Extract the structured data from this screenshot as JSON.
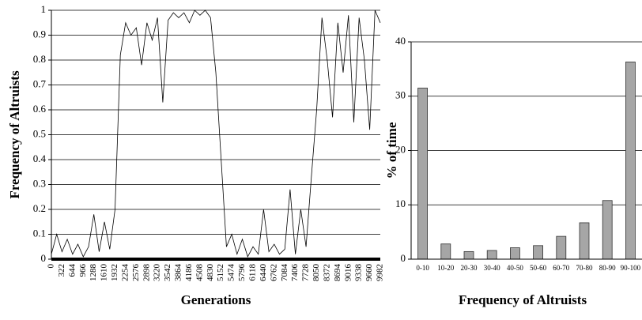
{
  "chart_data": [
    {
      "type": "line",
      "xlabel": "Generations",
      "ylabel": "Frequency of Altruists",
      "x": [
        0,
        161,
        322,
        483,
        644,
        805,
        966,
        1127,
        1288,
        1449,
        1610,
        1771,
        1932,
        2093,
        2254,
        2415,
        2576,
        2737,
        2898,
        3059,
        3220,
        3381,
        3542,
        3703,
        3864,
        4025,
        4186,
        4347,
        4508,
        4669,
        4830,
        4991,
        5152,
        5313,
        5474,
        5635,
        5796,
        5957,
        6118,
        6279,
        6440,
        6601,
        6762,
        6923,
        7084,
        7245,
        7406,
        7567,
        7728,
        7889,
        8050,
        8211,
        8372,
        8533,
        8694,
        8855,
        9016,
        9177,
        9338,
        9499,
        9660,
        9821,
        9982
      ],
      "series": [
        {
          "color": "#000000",
          "values": [
            0.02,
            0.1,
            0.03,
            0.08,
            0.02,
            0.06,
            0.01,
            0.05,
            0.18,
            0.03,
            0.15,
            0.04,
            0.2,
            0.82,
            0.95,
            0.9,
            0.93,
            0.78,
            0.95,
            0.88,
            0.97,
            0.63,
            0.96,
            0.99,
            0.97,
            0.99,
            0.95,
            1.0,
            0.98,
            1.0,
            0.97,
            0.75,
            0.4,
            0.05,
            0.1,
            0.02,
            0.08,
            0.01,
            0.05,
            0.02,
            0.2,
            0.03,
            0.06,
            0.02,
            0.04,
            0.28,
            0.02,
            0.2,
            0.05,
            0.33,
            0.6,
            0.97,
            0.8,
            0.57,
            0.95,
            0.75,
            0.98,
            0.55,
            0.97,
            0.8,
            0.52,
            1.0,
            0.95
          ]
        }
      ],
      "xlim": [
        0,
        9982
      ],
      "xticks": [
        0,
        322,
        644,
        966,
        1288,
        1610,
        1932,
        2254,
        2576,
        2898,
        3220,
        3542,
        3864,
        4186,
        4508,
        4830,
        5152,
        5474,
        5796,
        6118,
        6440,
        6762,
        7084,
        7406,
        7728,
        8050,
        8372,
        8694,
        9016,
        9338,
        9660,
        9982
      ],
      "ylim": [
        0,
        1
      ],
      "yticks": [
        0,
        0.1,
        0.2,
        0.3,
        0.4,
        0.5,
        0.6,
        0.7,
        0.8,
        0.9,
        1
      ],
      "grid": true
    },
    {
      "type": "bar",
      "xlabel": "Frequency of Altruists",
      "ylabel": "% of time",
      "categories": [
        "0-10",
        "10-20",
        "20-30",
        "30-40",
        "40-50",
        "50-60",
        "60-70",
        "70-80",
        "80-90",
        "90-100"
      ],
      "values": [
        31.5,
        2.8,
        1.4,
        1.6,
        2.1,
        2.5,
        4.2,
        6.7,
        10.8,
        36.3
      ],
      "color": "#a6a6a6",
      "ylim": [
        0,
        40
      ],
      "yticks": [
        0,
        10,
        20,
        30,
        40
      ],
      "grid": true
    }
  ]
}
